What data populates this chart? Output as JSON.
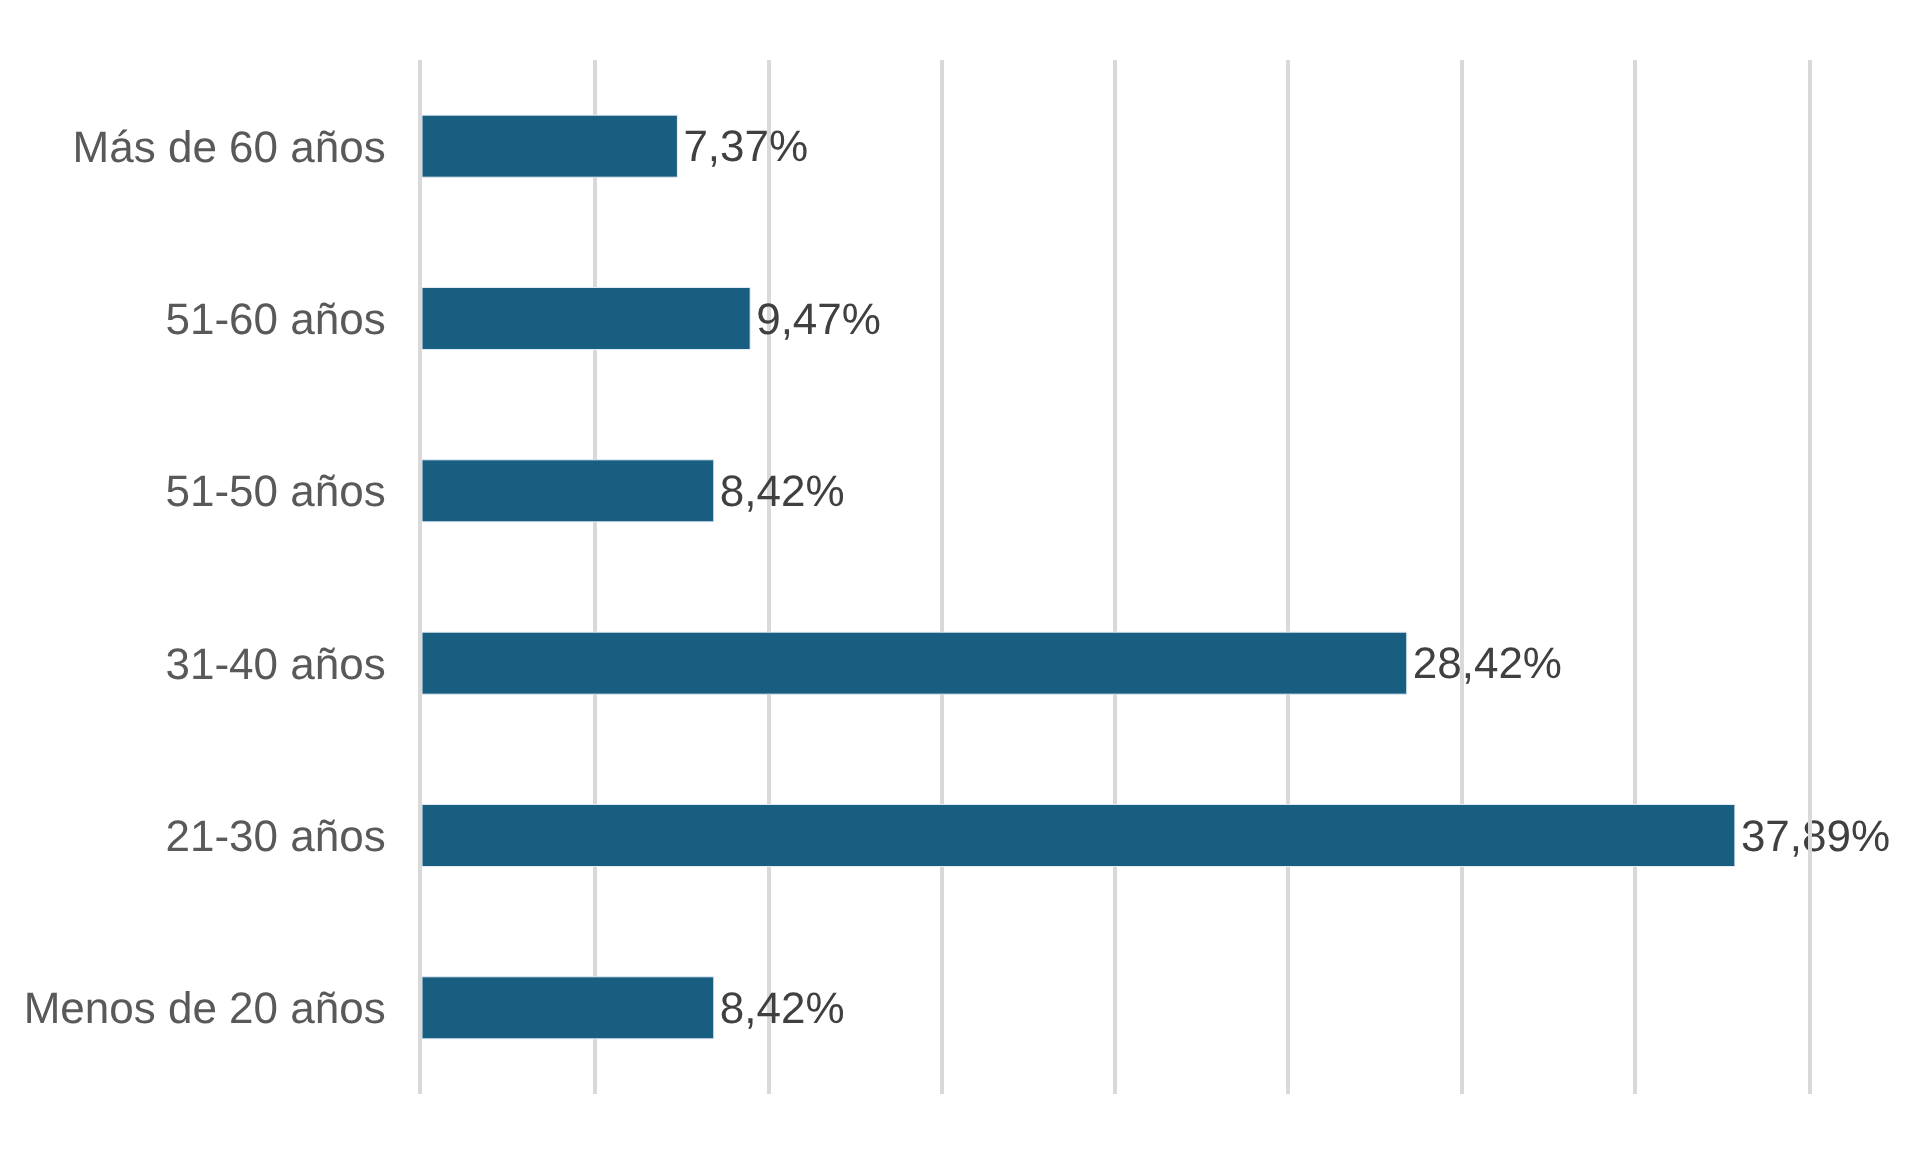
{
  "chart_data": {
    "type": "bar",
    "orientation": "horizontal",
    "categories": [
      "Más de 60 años",
      "51-60 años",
      "51-50 años",
      "31-40 años",
      "21-30 años",
      "Menos de 20 años"
    ],
    "values": [
      7.37,
      9.47,
      8.42,
      28.42,
      37.89,
      8.42
    ],
    "value_labels": [
      "7,37%",
      "9,47%",
      "8,42%",
      "28,42%",
      "37,89%",
      "8,42%"
    ],
    "color": "#175e80",
    "xlim": [
      0,
      40
    ],
    "xticks": [
      {
        "value": 0,
        "label": null
      },
      {
        "value": 5,
        "label": null
      },
      {
        "value": 10,
        "label": null
      },
      {
        "value": 15,
        "label": null
      },
      {
        "value": 20,
        "label": null
      },
      {
        "value": 25,
        "label": null
      },
      {
        "value": 30,
        "label": null
      },
      {
        "value": 35,
        "label": null
      },
      {
        "value": 40,
        "label": null
      }
    ],
    "tick_labels": "y",
    "grid": "x",
    "legend": false
  }
}
